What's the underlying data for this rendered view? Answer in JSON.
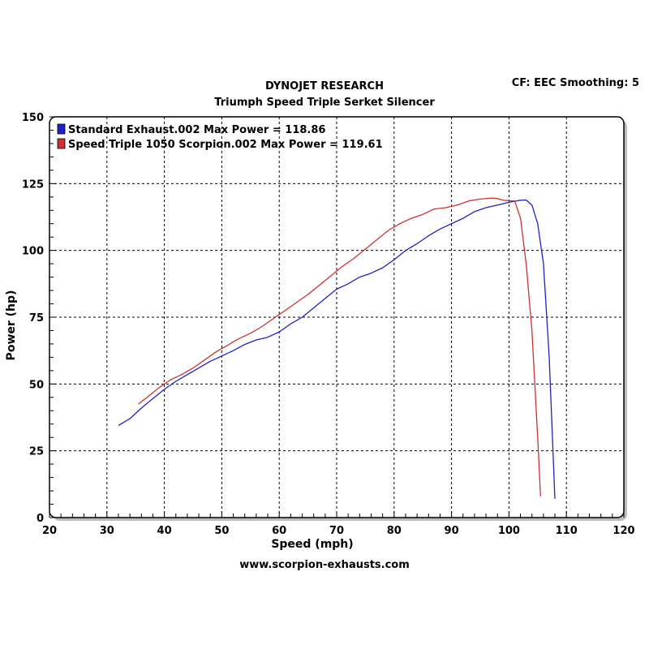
{
  "header": {
    "title": "DYNOJET RESEARCH",
    "subtitle": "Triumph Speed Triple Serket Silencer",
    "cf_info": "CF: EEC  Smoothing: 5"
  },
  "footer": {
    "url": "www.scorpion-exhausts.com"
  },
  "chart_data": {
    "type": "line",
    "xlabel": "Speed (mph)",
    "ylabel": "Power (hp)",
    "xlim": [
      20,
      120
    ],
    "ylim": [
      0,
      150
    ],
    "x_ticks": [
      20,
      30,
      40,
      50,
      60,
      70,
      80,
      90,
      100,
      110,
      120
    ],
    "y_ticks": [
      0,
      25,
      50,
      75,
      100,
      125,
      150
    ],
    "grid": true,
    "grid_style": "dashed",
    "legend_position": "top-left",
    "series": [
      {
        "name": "Standard Exhaust.002 Max Power = 118.86",
        "color": "#2020c8",
        "x": [
          32,
          34,
          36,
          38,
          40,
          42,
          44,
          46,
          48,
          50,
          52,
          54,
          56,
          58,
          60,
          62,
          64,
          66,
          68,
          70,
          72,
          74,
          76,
          78,
          80,
          82,
          84,
          86,
          88,
          90,
          92,
          94,
          96,
          98,
          100,
          101,
          102,
          103,
          104,
          105,
          106,
          107,
          108
        ],
        "y": [
          34.5,
          37,
          41,
          44.5,
          48,
          51,
          53.5,
          56,
          58.5,
          60.5,
          62.5,
          64.8,
          66.5,
          67.5,
          69.5,
          72.5,
          75,
          78.5,
          82,
          85.5,
          87.5,
          90,
          91.5,
          93.5,
          96.5,
          100,
          102.5,
          105.5,
          108,
          110,
          112,
          114.5,
          116,
          117,
          118,
          118.4,
          118.8,
          118.86,
          117,
          110,
          95,
          60,
          7
        ]
      },
      {
        "name": "Speed Triple 1050 Scorpion.002 Max Power = 119.61",
        "color": "#d03030",
        "x": [
          35.5,
          37,
          39,
          41,
          43,
          45,
          47,
          49,
          51,
          53,
          55,
          57,
          59,
          61,
          63,
          65,
          67,
          69,
          71,
          73,
          75,
          77,
          79,
          81,
          83,
          85,
          87,
          89,
          91,
          93,
          95,
          97,
          98,
          99,
          100,
          101,
          102,
          103,
          104,
          105,
          105.5
        ],
        "y": [
          42.5,
          45,
          48.5,
          51.5,
          53.5,
          56,
          59,
          62,
          64.5,
          67,
          69,
          71.5,
          74.5,
          77.5,
          80.5,
          83.5,
          87,
          90.5,
          94,
          97,
          100.5,
          104,
          107.5,
          110,
          112,
          113.5,
          115.5,
          116,
          117,
          118.5,
          119.2,
          119.61,
          119.4,
          118.8,
          118.6,
          118.5,
          112,
          95,
          70,
          30,
          8
        ]
      }
    ]
  }
}
